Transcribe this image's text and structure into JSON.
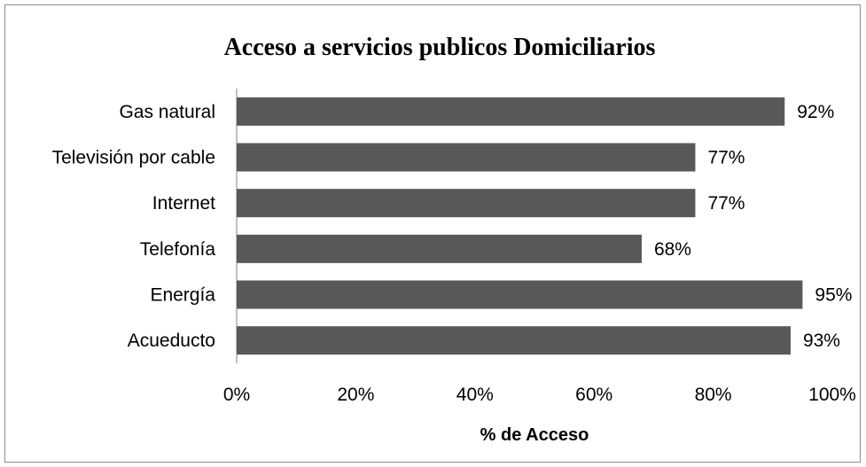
{
  "chart_data": {
    "type": "bar",
    "orientation": "horizontal",
    "title": "Acceso a servicios publicos Domiciliarios",
    "xlabel": "% de Acceso",
    "ylabel": "",
    "categories": [
      "Gas natural",
      "Televisión por cable",
      "Internet",
      "Telefonía",
      "Energía",
      "Acueducto"
    ],
    "values": [
      92,
      77,
      77,
      68,
      95,
      93
    ],
    "value_labels": [
      "92%",
      "77%",
      "77%",
      "68%",
      "95%",
      "93%"
    ],
    "xlim": [
      0,
      100
    ],
    "x_ticks": [
      "0%",
      "20%",
      "40%",
      "60%",
      "80%",
      "100%"
    ],
    "grid": false,
    "legend": "none",
    "bar_color": "#595959"
  }
}
